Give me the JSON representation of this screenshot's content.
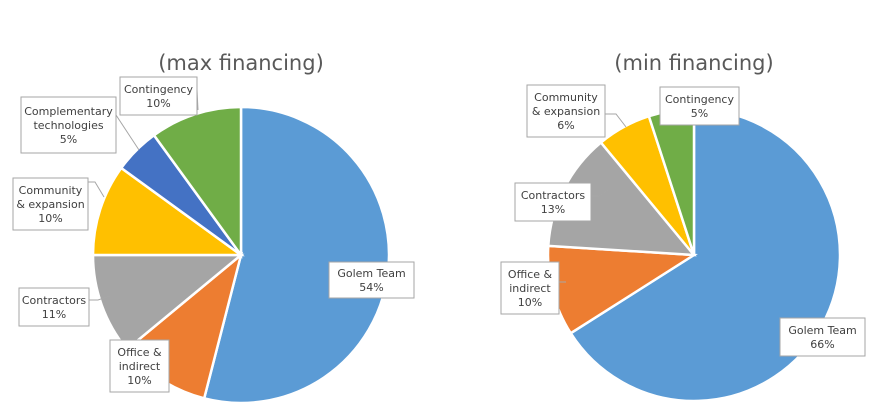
{
  "chart_data": [
    {
      "type": "pie",
      "title": "(max financing)",
      "slices": [
        {
          "name": "Golem Team",
          "value": 54,
          "label": "54%",
          "color": "#5b9bd5"
        },
        {
          "name": "Office & indirect",
          "value": 10,
          "label": "10%",
          "color": "#ed7d31"
        },
        {
          "name": "Contractors",
          "value": 11,
          "label": "11%",
          "color": "#a5a5a5"
        },
        {
          "name": "Community & expansion",
          "value": 10,
          "label": "10%",
          "color": "#ffc000"
        },
        {
          "name": "Complementary technologies",
          "value": 5,
          "label": "5%",
          "color": "#4472c4"
        },
        {
          "name": "Contingency",
          "value": 10,
          "label": "10%",
          "color": "#70ad47"
        }
      ]
    },
    {
      "type": "pie",
      "title": "(min financing)",
      "slices": [
        {
          "name": "Golem Team",
          "value": 66,
          "label": "66%",
          "color": "#5b9bd5"
        },
        {
          "name": "Office & indirect",
          "value": 10,
          "label": "10%",
          "color": "#ed7d31"
        },
        {
          "name": "Contractors",
          "value": 13,
          "label": "13%",
          "color": "#a5a5a5"
        },
        {
          "name": "Community & expansion",
          "value": 6,
          "label": "6%",
          "color": "#ffc000"
        },
        {
          "name": "Contingency",
          "value": 5,
          "label": "5%",
          "color": "#70ad47"
        }
      ]
    }
  ]
}
